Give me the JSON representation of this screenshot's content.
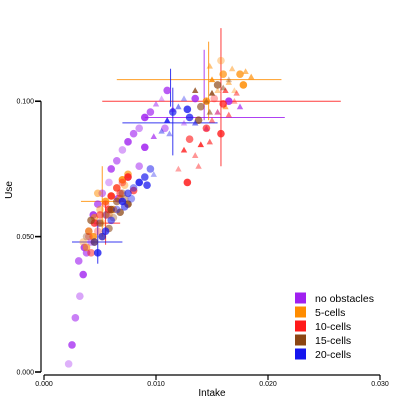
{
  "chart_data": {
    "type": "scatter",
    "title": "",
    "xlabel": "Intake",
    "ylabel": "Use",
    "xlim": [
      0,
      0.03
    ],
    "ylim": [
      0,
      0.13
    ],
    "xticks": [
      {
        "v": 0,
        "label": "0.000"
      },
      {
        "v": 0.01,
        "label": "0.010"
      },
      {
        "v": 0.02,
        "label": "0.020"
      },
      {
        "v": 0.03,
        "label": "0.030"
      }
    ],
    "yticks": [
      {
        "v": 0,
        "label": "0.000"
      },
      {
        "v": 0.05,
        "label": "0.050"
      },
      {
        "v": 0.1,
        "label": "0.100"
      }
    ],
    "grid": false,
    "legend_position": "bottom-right",
    "series": [
      {
        "name": "no obstacles",
        "color": "#a020f0",
        "points": [
          [
            0.0022,
            0.003
          ],
          [
            0.0025,
            0.01
          ],
          [
            0.0028,
            0.02
          ],
          [
            0.0032,
            0.028
          ],
          [
            0.0035,
            0.036
          ],
          [
            0.0038,
            0.044
          ],
          [
            0.004,
            0.052
          ],
          [
            0.0044,
            0.058
          ],
          [
            0.0048,
            0.062
          ],
          [
            0.0052,
            0.066
          ],
          [
            0.0058,
            0.07
          ],
          [
            0.006,
            0.075
          ],
          [
            0.0065,
            0.078
          ],
          [
            0.007,
            0.082
          ],
          [
            0.0075,
            0.085
          ],
          [
            0.008,
            0.088
          ],
          [
            0.0085,
            0.09
          ],
          [
            0.009,
            0.094
          ],
          [
            0.0095,
            0.096
          ],
          [
            0.01,
            0.099
          ],
          [
            0.0105,
            0.101
          ],
          [
            0.011,
            0.104
          ],
          [
            0.0115,
            0.097
          ],
          [
            0.0125,
            0.092
          ],
          [
            0.0135,
            0.101
          ],
          [
            0.0145,
            0.09
          ],
          [
            0.0155,
            0.096
          ],
          [
            0.0165,
            0.1
          ],
          [
            0.0175,
            0.098
          ],
          [
            0.0085,
            0.076
          ],
          [
            0.0075,
            0.072
          ],
          [
            0.0066,
            0.064
          ],
          [
            0.0056,
            0.058
          ],
          [
            0.0048,
            0.055
          ],
          [
            0.0036,
            0.046
          ],
          [
            0.0031,
            0.041
          ],
          [
            0.0042,
            0.048
          ],
          [
            0.009,
            0.083
          ],
          [
            0.0098,
            0.087
          ],
          [
            0.0108,
            0.09
          ]
        ],
        "errorbars": [
          {
            "x": 0.0145,
            "y": 0.094,
            "xmin": 0.009,
            "xmax": 0.0215,
            "ymin": 0.094,
            "ymax": 0.094
          },
          {
            "x": 0.0143,
            "y": 0.106,
            "xmin": 0.0143,
            "xmax": 0.0143,
            "ymin": 0.093,
            "ymax": 0.119
          }
        ]
      },
      {
        "name": "5-cells",
        "color": "#ff8c00",
        "points": [
          [
            0.0035,
            0.048
          ],
          [
            0.004,
            0.052
          ],
          [
            0.0045,
            0.057
          ],
          [
            0.005,
            0.06
          ],
          [
            0.0055,
            0.063
          ],
          [
            0.006,
            0.065
          ],
          [
            0.0065,
            0.068
          ],
          [
            0.007,
            0.071
          ],
          [
            0.0075,
            0.073
          ],
          [
            0.0048,
            0.066
          ],
          [
            0.0052,
            0.055
          ],
          [
            0.0062,
            0.06
          ],
          [
            0.0068,
            0.064
          ],
          [
            0.0072,
            0.069
          ],
          [
            0.0044,
            0.05
          ],
          [
            0.0038,
            0.046
          ],
          [
            0.0058,
            0.058
          ],
          [
            0.015,
            0.108
          ],
          [
            0.016,
            0.11
          ],
          [
            0.0165,
            0.107
          ],
          [
            0.017,
            0.104
          ],
          [
            0.0175,
            0.11
          ],
          [
            0.018,
            0.111
          ],
          [
            0.0155,
            0.104
          ],
          [
            0.0145,
            0.1
          ],
          [
            0.0162,
            0.098
          ],
          [
            0.0168,
            0.112
          ],
          [
            0.0178,
            0.106
          ],
          [
            0.0185,
            0.109
          ],
          [
            0.0148,
            0.113
          ],
          [
            0.0158,
            0.115
          ]
        ],
        "errorbars": [
          {
            "x": 0.0152,
            "y": 0.108,
            "xmin": 0.0065,
            "xmax": 0.0212,
            "ymin": 0.108,
            "ymax": 0.108
          },
          {
            "x": 0.0147,
            "y": 0.112,
            "xmin": 0.0147,
            "xmax": 0.0147,
            "ymin": 0.093,
            "ymax": 0.122
          },
          {
            "x": 0.0052,
            "y": 0.063,
            "xmin": 0.0033,
            "xmax": 0.0072,
            "ymin": 0.063,
            "ymax": 0.063
          },
          {
            "x": 0.0052,
            "y": 0.063,
            "xmin": 0.0052,
            "xmax": 0.0052,
            "ymin": 0.05,
            "ymax": 0.076
          }
        ]
      },
      {
        "name": "10-cells",
        "color": "#ff1a1a",
        "points": [
          [
            0.004,
            0.05
          ],
          [
            0.0045,
            0.055
          ],
          [
            0.005,
            0.058
          ],
          [
            0.0055,
            0.062
          ],
          [
            0.006,
            0.065
          ],
          [
            0.0065,
            0.068
          ],
          [
            0.007,
            0.07
          ],
          [
            0.0075,
            0.072
          ],
          [
            0.008,
            0.067
          ],
          [
            0.0042,
            0.044
          ],
          [
            0.0048,
            0.052
          ],
          [
            0.0058,
            0.06
          ],
          [
            0.0068,
            0.066
          ],
          [
            0.012,
            0.075
          ],
          [
            0.0125,
            0.082
          ],
          [
            0.013,
            0.086
          ],
          [
            0.0135,
            0.08
          ],
          [
            0.014,
            0.084
          ],
          [
            0.0145,
            0.09
          ],
          [
            0.015,
            0.093
          ],
          [
            0.0155,
            0.096
          ],
          [
            0.016,
            0.099
          ],
          [
            0.0165,
            0.095
          ],
          [
            0.017,
            0.1
          ],
          [
            0.0158,
            0.088
          ],
          [
            0.0148,
            0.085
          ],
          [
            0.0138,
            0.076
          ],
          [
            0.0128,
            0.07
          ],
          [
            0.0162,
            0.104
          ],
          [
            0.0172,
            0.103
          ],
          [
            0.0152,
            0.101
          ]
        ],
        "errorbars": [
          {
            "x": 0.0158,
            "y": 0.1,
            "xmin": 0.0052,
            "xmax": 0.0265,
            "ymin": 0.1,
            "ymax": 0.1
          },
          {
            "x": 0.0158,
            "y": 0.1,
            "xmin": 0.0158,
            "xmax": 0.0158,
            "ymin": 0.076,
            "ymax": 0.127
          },
          {
            "x": 0.0055,
            "y": 0.055,
            "xmin": 0.0042,
            "xmax": 0.0068,
            "ymin": 0.055,
            "ymax": 0.055
          },
          {
            "x": 0.0055,
            "y": 0.055,
            "xmin": 0.0055,
            "xmax": 0.0055,
            "ymin": 0.047,
            "ymax": 0.063
          }
        ]
      },
      {
        "name": "15-cells",
        "color": "#8b4513",
        "points": [
          [
            0.0038,
            0.05
          ],
          [
            0.0045,
            0.048
          ],
          [
            0.005,
            0.055
          ],
          [
            0.0055,
            0.058
          ],
          [
            0.006,
            0.06
          ],
          [
            0.0065,
            0.063
          ],
          [
            0.007,
            0.066
          ],
          [
            0.0075,
            0.062
          ],
          [
            0.0042,
            0.056
          ],
          [
            0.0052,
            0.05
          ],
          [
            0.0062,
            0.057
          ],
          [
            0.0068,
            0.059
          ],
          [
            0.0058,
            0.053
          ],
          [
            0.0072,
            0.064
          ],
          [
            0.0135,
            0.104
          ],
          [
            0.014,
            0.098
          ],
          [
            0.0145,
            0.1
          ],
          [
            0.015,
            0.103
          ],
          [
            0.0155,
            0.106
          ],
          [
            0.016,
            0.105
          ],
          [
            0.0165,
            0.108
          ],
          [
            0.0138,
            0.093
          ],
          [
            0.0148,
            0.096
          ]
        ],
        "errorbars": []
      },
      {
        "name": "20-cells",
        "color": "#1515ee",
        "points": [
          [
            0.0045,
            0.048
          ],
          [
            0.0055,
            0.052
          ],
          [
            0.006,
            0.056
          ],
          [
            0.0065,
            0.06
          ],
          [
            0.007,
            0.063
          ],
          [
            0.0075,
            0.066
          ],
          [
            0.008,
            0.068
          ],
          [
            0.0085,
            0.07
          ],
          [
            0.009,
            0.072
          ],
          [
            0.0095,
            0.075
          ],
          [
            0.0098,
            0.073
          ],
          [
            0.0092,
            0.069
          ],
          [
            0.0072,
            0.061
          ],
          [
            0.0078,
            0.064
          ],
          [
            0.0048,
            0.044
          ],
          [
            0.0052,
            0.05
          ],
          [
            0.0105,
            0.089
          ],
          [
            0.011,
            0.093
          ],
          [
            0.0115,
            0.096
          ],
          [
            0.012,
            0.098
          ],
          [
            0.0125,
            0.101
          ],
          [
            0.013,
            0.094
          ],
          [
            0.0135,
            0.092
          ],
          [
            0.0112,
            0.088
          ],
          [
            0.0128,
            0.097
          ]
        ],
        "errorbars": [
          {
            "x": 0.0115,
            "y": 0.092,
            "xmin": 0.007,
            "xmax": 0.0155,
            "ymin": 0.092,
            "ymax": 0.092
          },
          {
            "x": 0.0115,
            "y": 0.092,
            "xmin": 0.0115,
            "xmax": 0.0115,
            "ymin": 0.08,
            "ymax": 0.105
          },
          {
            "x": 0.0113,
            "y": 0.105,
            "xmin": 0.0113,
            "xmax": 0.0113,
            "ymin": 0.098,
            "ymax": 0.112
          },
          {
            "x": 0.0048,
            "y": 0.048,
            "xmin": 0.0025,
            "xmax": 0.007,
            "ymin": 0.048,
            "ymax": 0.048
          },
          {
            "x": 0.0048,
            "y": 0.048,
            "xmin": 0.0048,
            "xmax": 0.0048,
            "ymin": 0.04,
            "ymax": 0.056
          }
        ]
      }
    ]
  }
}
